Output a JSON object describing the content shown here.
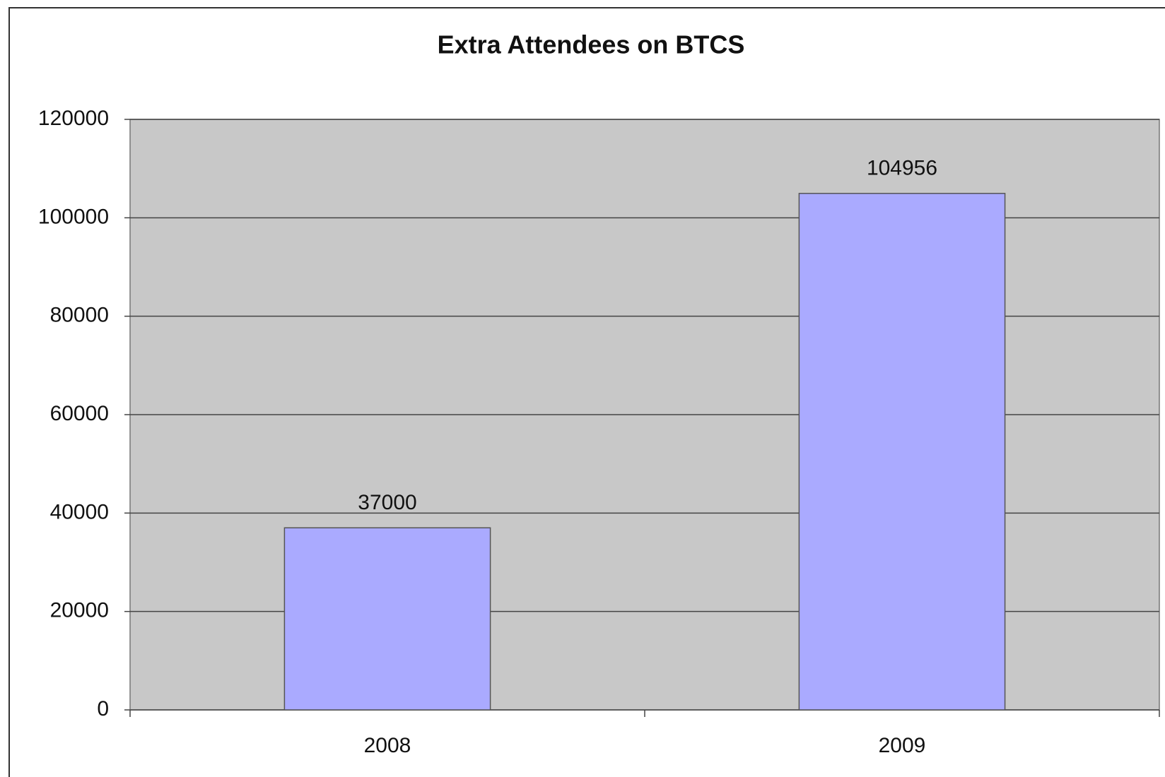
{
  "chart_data": {
    "type": "bar",
    "title": "Extra Attendees on BTCS",
    "categories": [
      "2008",
      "2009"
    ],
    "values": [
      37000,
      104956
    ],
    "color": "#aaaaff",
    "ylim": [
      0,
      120000
    ],
    "yticks": [
      0,
      20000,
      40000,
      60000,
      80000,
      100000,
      120000
    ],
    "grid": true
  }
}
